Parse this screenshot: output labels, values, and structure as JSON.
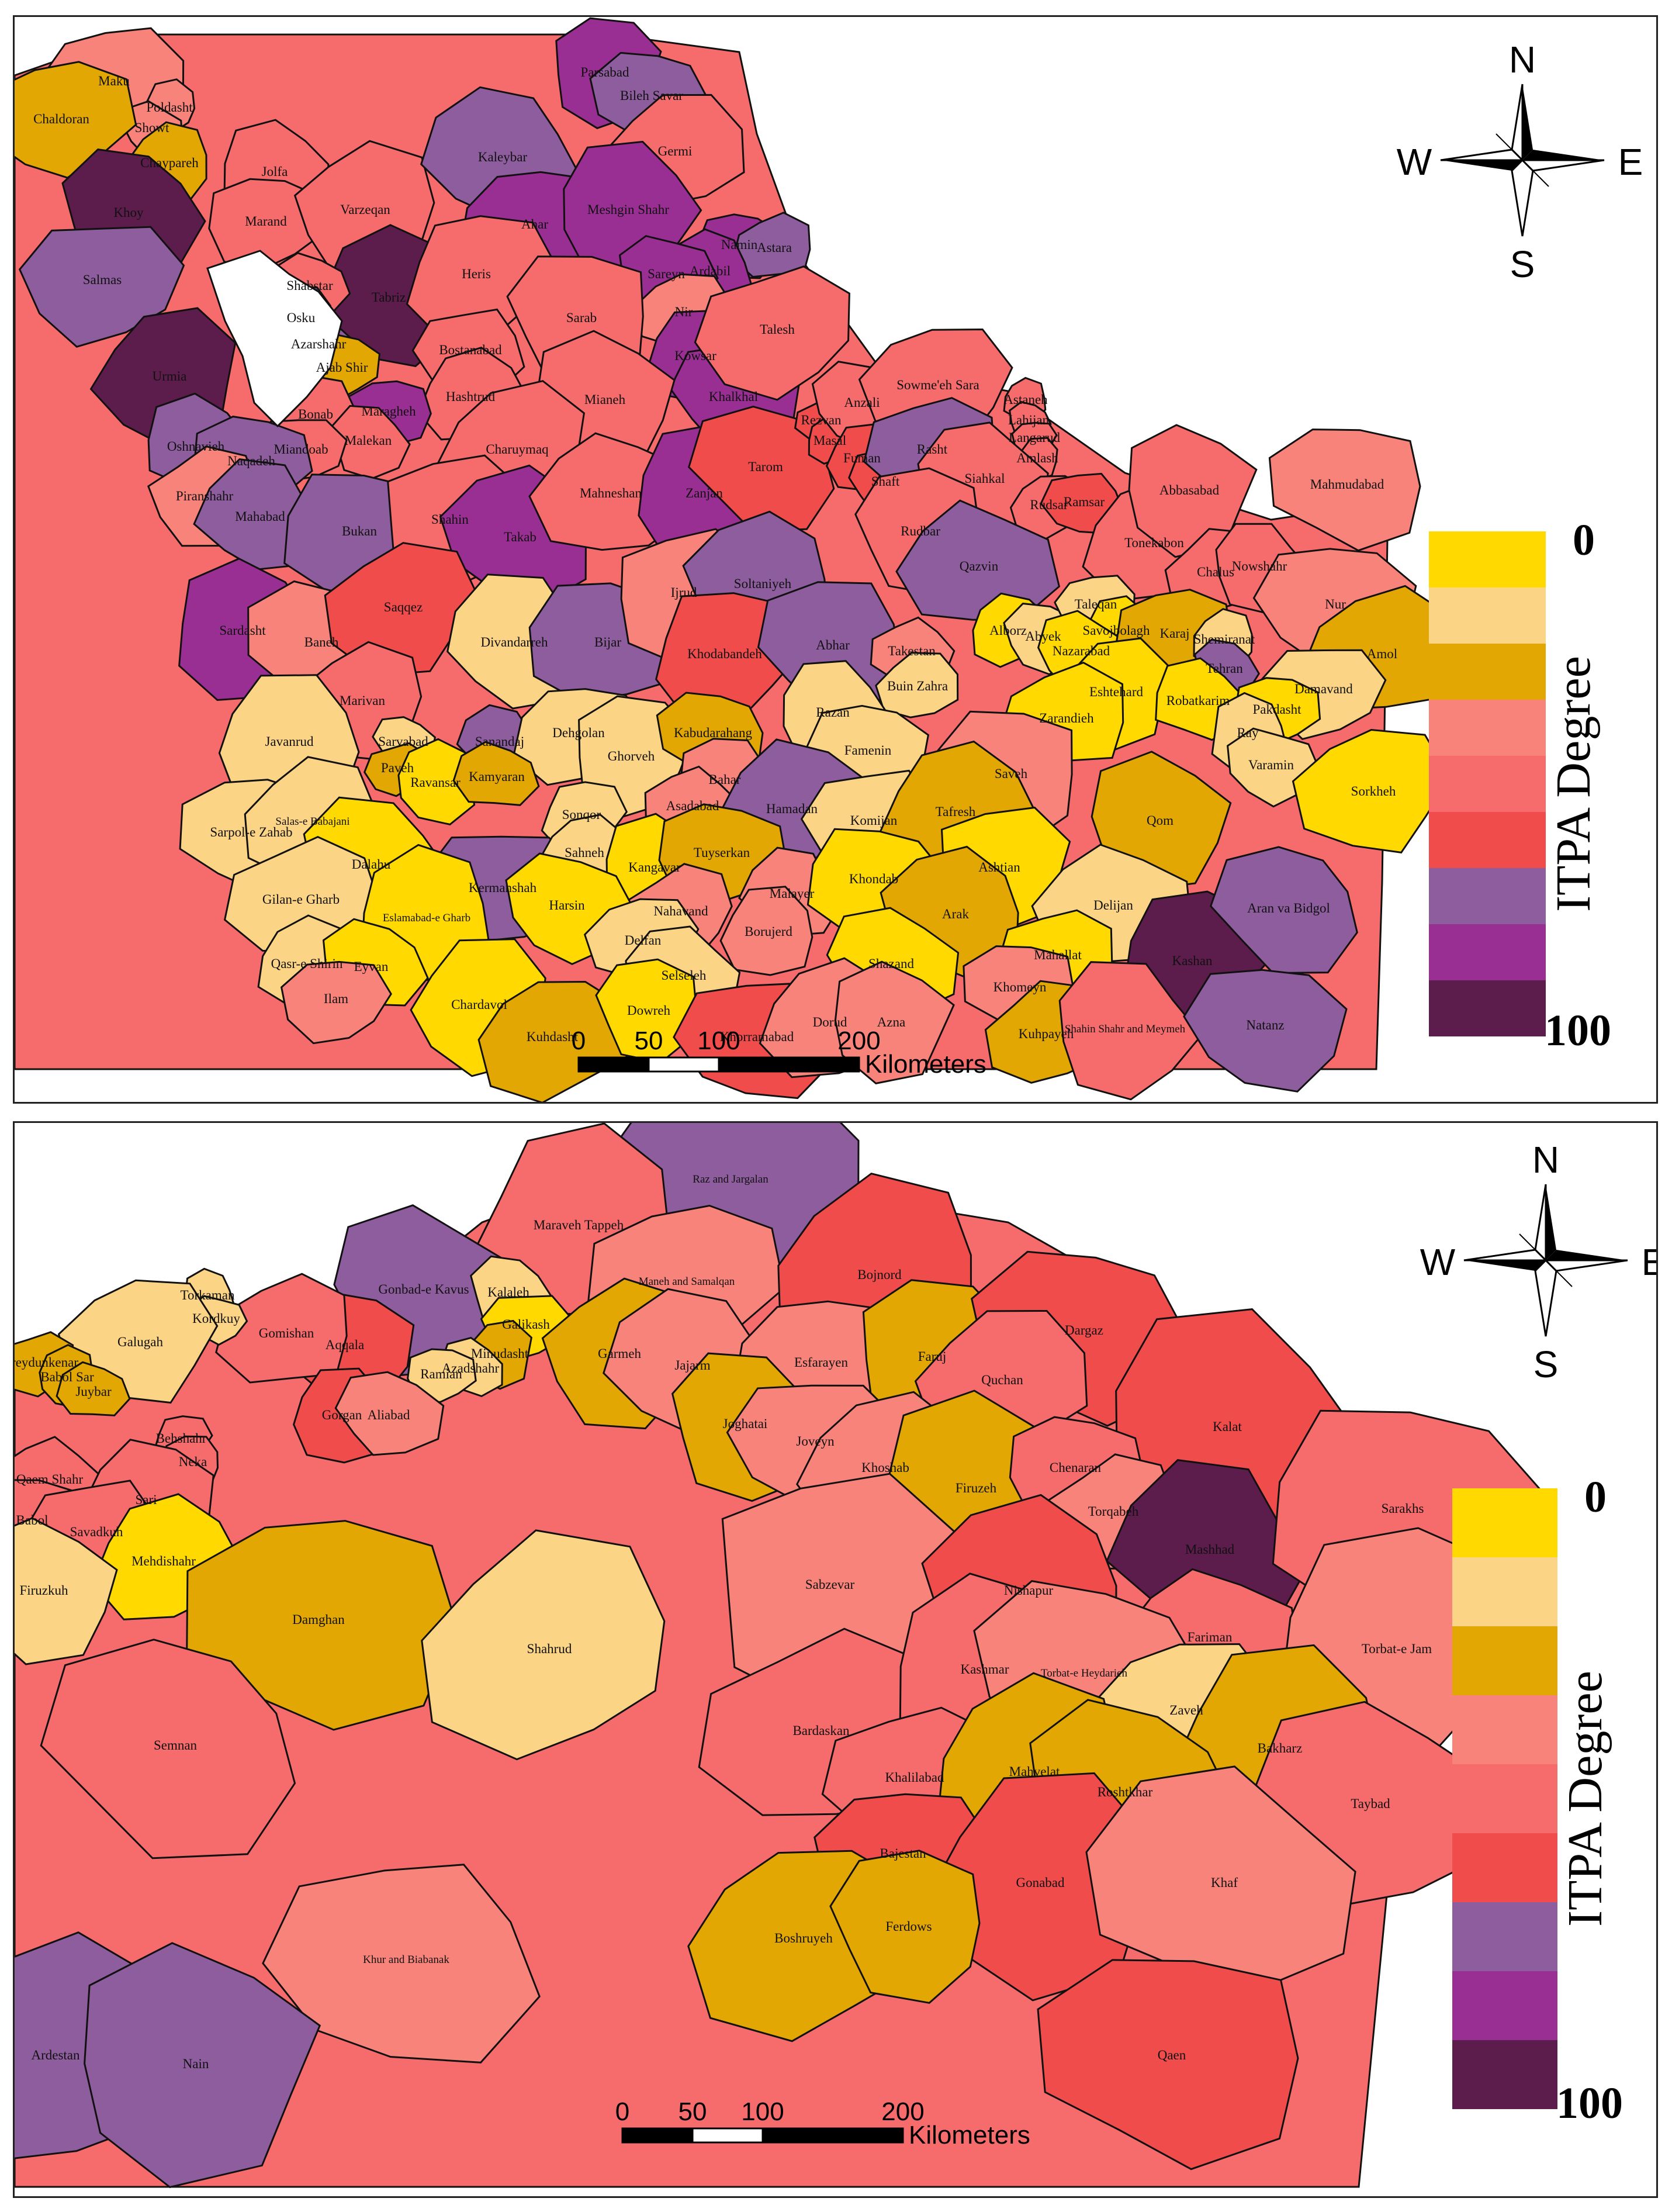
{
  "legend": {
    "title": "ITPA Degree",
    "min_label": "0",
    "max_label": "100",
    "classes": [
      "#FFD900",
      "#FCD486",
      "#E3A704",
      "#F8837A",
      "#F66B6B",
      "#F04C4C",
      "#8D5D9D",
      "#9A2F93",
      "#5C1C4C"
    ]
  },
  "compass": {
    "north": "N",
    "south": "S",
    "east": "E",
    "west": "W"
  },
  "scale_bar": {
    "ticks": [
      "0",
      "50",
      "100",
      "200"
    ],
    "unit": "Kilometers"
  },
  "top_map": {
    "regions": [
      {
        "name": "Maku",
        "cls": 3
      },
      {
        "name": "Poldasht",
        "cls": 3
      },
      {
        "name": "Showt",
        "cls": 3
      },
      {
        "name": "Chaldoran",
        "cls": 2
      },
      {
        "name": "Chaypareh",
        "cls": 2
      },
      {
        "name": "Khoy",
        "cls": 8
      },
      {
        "name": "Salmas",
        "cls": 6
      },
      {
        "name": "Urmia",
        "cls": 8
      },
      {
        "name": "Jolfa",
        "cls": 4
      },
      {
        "name": "Marand",
        "cls": 4
      },
      {
        "name": "Varzeqan",
        "cls": 4
      },
      {
        "name": "Kaleybar",
        "cls": 6
      },
      {
        "name": "Ahar",
        "cls": 7
      },
      {
        "name": "Parsabad",
        "cls": 7
      },
      {
        "name": "Bileh Savar",
        "cls": 6
      },
      {
        "name": "Germi",
        "cls": 4
      },
      {
        "name": "Meshgin Shahr",
        "cls": 7
      },
      {
        "name": "Namin",
        "cls": 7
      },
      {
        "name": "Astara",
        "cls": 6
      },
      {
        "name": "Ardabil",
        "cls": 7
      },
      {
        "name": "Sareyn",
        "cls": 7
      },
      {
        "name": "Nir",
        "cls": 3
      },
      {
        "name": "Kowsar",
        "cls": 7
      },
      {
        "name": "Khalkhal",
        "cls": 7
      },
      {
        "name": "Talesh",
        "cls": 4
      },
      {
        "name": "Tabriz",
        "cls": 8
      },
      {
        "name": "Shabstar",
        "cls": 4
      },
      {
        "name": "Heris",
        "cls": 4
      },
      {
        "name": "Osku",
        "cls": 6
      },
      {
        "name": "Azarshahr",
        "cls": 6
      },
      {
        "name": "Ajab Shir",
        "cls": 2
      },
      {
        "name": "Sarab",
        "cls": 4
      },
      {
        "name": "Bostanabad",
        "cls": 4
      },
      {
        "name": "Hashtrud",
        "cls": 4
      },
      {
        "name": "Mianeh",
        "cls": 4
      },
      {
        "name": "Maragheh",
        "cls": 7
      },
      {
        "name": "Bonab",
        "cls": 4
      },
      {
        "name": "Malekan",
        "cls": 4
      },
      {
        "name": "Miandoab",
        "cls": 4
      },
      {
        "name": "Charuymaq",
        "cls": 4
      },
      {
        "name": "Oshnavieh",
        "cls": 6
      },
      {
        "name": "Naqadeh",
        "cls": 6
      },
      {
        "name": "Piranshahr",
        "cls": 3
      },
      {
        "name": "Mahabad",
        "cls": 6
      },
      {
        "name": "Bukan",
        "cls": 6
      },
      {
        "name": "Shahin",
        "cls": 4
      },
      {
        "name": "Takab",
        "cls": 7
      },
      {
        "name": "Mahneshan",
        "cls": 4
      },
      {
        "name": "Zanjan",
        "cls": 7
      },
      {
        "name": "Tarom",
        "cls": 5
      },
      {
        "name": "Rezvan",
        "cls": 5
      },
      {
        "name": "Masal",
        "cls": 5
      },
      {
        "name": "Anzali",
        "cls": 4
      },
      {
        "name": "Sowme'eh Sara",
        "cls": 4
      },
      {
        "name": "Fuman",
        "cls": 5
      },
      {
        "name": "Shaft",
        "cls": 5
      },
      {
        "name": "Rasht",
        "cls": 6
      },
      {
        "name": "Astaneh",
        "cls": 4
      },
      {
        "name": "Lahijan",
        "cls": 4
      },
      {
        "name": "Langarud",
        "cls": 4
      },
      {
        "name": "Amlash",
        "cls": 4
      },
      {
        "name": "Siahkal",
        "cls": 4
      },
      {
        "name": "Rudsar",
        "cls": 4
      },
      {
        "name": "Rudbar",
        "cls": 4
      },
      {
        "name": "Ramsar",
        "cls": 5
      },
      {
        "name": "Tonekabon",
        "cls": 4
      },
      {
        "name": "Abbasabad",
        "cls": 4
      },
      {
        "name": "Mahmudabad",
        "cls": 3
      },
      {
        "name": "Chalus",
        "cls": 4
      },
      {
        "name": "Nowshahr",
        "cls": 4
      },
      {
        "name": "Nur",
        "cls": 3
      },
      {
        "name": "Amol",
        "cls": 2
      },
      {
        "name": "Sardasht",
        "cls": 7
      },
      {
        "name": "Baneh",
        "cls": 3
      },
      {
        "name": "Saqqez",
        "cls": 5
      },
      {
        "name": "Divandarreh",
        "cls": 1
      },
      {
        "name": "Bijar",
        "cls": 6
      },
      {
        "name": "Ijrud",
        "cls": 3
      },
      {
        "name": "Soltaniyeh",
        "cls": 6
      },
      {
        "name": "Qazvin",
        "cls": 6
      },
      {
        "name": "Khodabandeh",
        "cls": 5
      },
      {
        "name": "Abhar",
        "cls": 6
      },
      {
        "name": "Takestan",
        "cls": 3
      },
      {
        "name": "Alborz",
        "cls": 0
      },
      {
        "name": "Abyek",
        "cls": 1
      },
      {
        "name": "Taleqan",
        "cls": 1
      },
      {
        "name": "Savojbolagh",
        "cls": 0
      },
      {
        "name": "Nazarabad",
        "cls": 0
      },
      {
        "name": "Karaj",
        "cls": 2
      },
      {
        "name": "Shemiranat",
        "cls": 1
      },
      {
        "name": "Tehran",
        "cls": 6
      },
      {
        "name": "Damavand",
        "cls": 1
      },
      {
        "name": "Eshtehard",
        "cls": 0
      },
      {
        "name": "Robatkarim",
        "cls": 0
      },
      {
        "name": "Pakdasht",
        "cls": 0
      },
      {
        "name": "Marivan",
        "cls": 4
      },
      {
        "name": "Sanandaj",
        "cls": 6
      },
      {
        "name": "Dehgolan",
        "cls": 1
      },
      {
        "name": "Ghorveh",
        "cls": 1
      },
      {
        "name": "Kabudarahang",
        "cls": 2
      },
      {
        "name": "Buin Zahra",
        "cls": 1
      },
      {
        "name": "Razan",
        "cls": 1
      },
      {
        "name": "Famenin",
        "cls": 1
      },
      {
        "name": "Zarandieh",
        "cls": 0
      },
      {
        "name": "Ray",
        "cls": 1
      },
      {
        "name": "Varamin",
        "cls": 1
      },
      {
        "name": "Sorkheh",
        "cls": 0
      },
      {
        "name": "Javanrud",
        "cls": 1
      },
      {
        "name": "Sarvabad",
        "cls": 1
      },
      {
        "name": "Paveh",
        "cls": 2
      },
      {
        "name": "Ravansar",
        "cls": 0
      },
      {
        "name": "Kamyaran",
        "cls": 2
      },
      {
        "name": "Sonqor",
        "cls": 1
      },
      {
        "name": "Bahar",
        "cls": 3
      },
      {
        "name": "Asadabad",
        "cls": 3
      },
      {
        "name": "Hamadan",
        "cls": 6
      },
      {
        "name": "Saveh",
        "cls": 3
      },
      {
        "name": "Komijan",
        "cls": 1
      },
      {
        "name": "Tafresh",
        "cls": 2
      },
      {
        "name": "Qom",
        "cls": 2
      },
      {
        "name": "Sarpol-e Zahab",
        "cls": 1
      },
      {
        "name": "Salas-e Babajani",
        "cls": 1
      },
      {
        "name": "Dalahu",
        "cls": 0
      },
      {
        "name": "Kermanshah",
        "cls": 6
      },
      {
        "name": "Sahneh",
        "cls": 1
      },
      {
        "name": "Kangavar",
        "cls": 0
      },
      {
        "name": "Tuyserkan",
        "cls": 2
      },
      {
        "name": "Nahavand",
        "cls": 3
      },
      {
        "name": "Malayer",
        "cls": 3
      },
      {
        "name": "Khondab",
        "cls": 0
      },
      {
        "name": "Ashtian",
        "cls": 0
      },
      {
        "name": "Arak",
        "cls": 2
      },
      {
        "name": "Delijan",
        "cls": 1
      },
      {
        "name": "Kashan",
        "cls": 8
      },
      {
        "name": "Aran va Bidgol",
        "cls": 6
      },
      {
        "name": "Gilan-e Gharb",
        "cls": 1
      },
      {
        "name": "Eslamabad-e Gharb",
        "cls": 0
      },
      {
        "name": "Harsin",
        "cls": 0
      },
      {
        "name": "Delfan",
        "cls": 1
      },
      {
        "name": "Borujerd",
        "cls": 3
      },
      {
        "name": "Shazand",
        "cls": 0
      },
      {
        "name": "Mahallat",
        "cls": 0
      },
      {
        "name": "Qasr-e Shirin",
        "cls": 1
      },
      {
        "name": "Eyvan",
        "cls": 0
      },
      {
        "name": "Ilam",
        "cls": 3
      },
      {
        "name": "Chardavol",
        "cls": 0
      },
      {
        "name": "Selseleh",
        "cls": 1
      },
      {
        "name": "Kuhdasht",
        "cls": 2
      },
      {
        "name": "Dowreh",
        "cls": 0
      },
      {
        "name": "Khorramabad",
        "cls": 5
      },
      {
        "name": "Dorud",
        "cls": 3
      },
      {
        "name": "Azna",
        "cls": 3
      },
      {
        "name": "Khomeyn",
        "cls": 3
      },
      {
        "name": "Kuhpayeh",
        "cls": 2
      },
      {
        "name": "Shahin Shahr and Meymeh",
        "cls": 4
      },
      {
        "name": "Natanz",
        "cls": 6
      }
    ]
  },
  "bottom_map": {
    "regions": [
      {
        "name": "Raz and Jargalan",
        "cls": 6
      },
      {
        "name": "Maraveh Tappeh",
        "cls": 4
      },
      {
        "name": "Gonbad-e Kavus",
        "cls": 6
      },
      {
        "name": "Maneh and Samalqan",
        "cls": 3
      },
      {
        "name": "Bojnord",
        "cls": 5
      },
      {
        "name": "Kalaleh",
        "cls": 1
      },
      {
        "name": "Galikash",
        "cls": 0
      },
      {
        "name": "Minudasht",
        "cls": 2
      },
      {
        "name": "Azadshahr",
        "cls": 1
      },
      {
        "name": "Ramian",
        "cls": 1
      },
      {
        "name": "Garmeh",
        "cls": 2
      },
      {
        "name": "Jajarm",
        "cls": 3
      },
      {
        "name": "Esfarayen",
        "cls": 3
      },
      {
        "name": "Faruj",
        "cls": 2
      },
      {
        "name": "Dargaz",
        "cls": 5
      },
      {
        "name": "Quchan",
        "cls": 4
      },
      {
        "name": "Kalat",
        "cls": 5
      },
      {
        "name": "Aqqala",
        "cls": 5
      },
      {
        "name": "Gomishan",
        "cls": 4
      },
      {
        "name": "Torkaman",
        "cls": 1
      },
      {
        "name": "Kordkuy",
        "cls": 1
      },
      {
        "name": "Galugah",
        "cls": 1
      },
      {
        "name": "Gorgan",
        "cls": 5
      },
      {
        "name": "Aliabad",
        "cls": 3
      },
      {
        "name": "Fereydunkenar",
        "cls": 2
      },
      {
        "name": "Babol Sar",
        "cls": 2
      },
      {
        "name": "Juybar",
        "cls": 2
      },
      {
        "name": "Behshahr",
        "cls": 4
      },
      {
        "name": "Neka",
        "cls": 4
      },
      {
        "name": "Qaem Shahr",
        "cls": 4
      },
      {
        "name": "Sari",
        "cls": 4
      },
      {
        "name": "Babol",
        "cls": 4
      },
      {
        "name": "Savadkuh",
        "cls": 4
      },
      {
        "name": "Mehdishahr",
        "cls": 0
      },
      {
        "name": "Firuzkuh",
        "cls": 1
      },
      {
        "name": "Damghan",
        "cls": 2
      },
      {
        "name": "Shahrud",
        "cls": 1
      },
      {
        "name": "Joghatai",
        "cls": 2
      },
      {
        "name": "Joveyn",
        "cls": 3
      },
      {
        "name": "Khoshab",
        "cls": 3
      },
      {
        "name": "Firuzeh",
        "cls": 2
      },
      {
        "name": "Chenaran",
        "cls": 4
      },
      {
        "name": "Torqabeh",
        "cls": 3
      },
      {
        "name": "Mashhad",
        "cls": 8
      },
      {
        "name": "Sarakhs",
        "cls": 4
      },
      {
        "name": "Sabzevar",
        "cls": 3
      },
      {
        "name": "Nishapur",
        "cls": 5
      },
      {
        "name": "Fariman",
        "cls": 4
      },
      {
        "name": "Torbat-e Jam",
        "cls": 3
      },
      {
        "name": "Semnan",
        "cls": 4
      },
      {
        "name": "Bardaskan",
        "cls": 4
      },
      {
        "name": "Kashmar",
        "cls": 4
      },
      {
        "name": "Torbat-e Heydarieh",
        "cls": 3
      },
      {
        "name": "Zaveh",
        "cls": 1
      },
      {
        "name": "Bakharz",
        "cls": 2
      },
      {
        "name": "Taybad",
        "cls": 4
      },
      {
        "name": "Khalilabad",
        "cls": 4
      },
      {
        "name": "Mahvelat",
        "cls": 2
      },
      {
        "name": "Roshtkhar",
        "cls": 2
      },
      {
        "name": "Bajestan",
        "cls": 5
      },
      {
        "name": "Gonabad",
        "cls": 5
      },
      {
        "name": "Khaf",
        "cls": 3
      },
      {
        "name": "Boshruyeh",
        "cls": 2
      },
      {
        "name": "Ferdows",
        "cls": 2
      },
      {
        "name": "Khur and Biabanak",
        "cls": 3
      },
      {
        "name": "Ardestan",
        "cls": 6
      },
      {
        "name": "Nain",
        "cls": 6
      },
      {
        "name": "Qaen",
        "cls": 5
      }
    ]
  }
}
